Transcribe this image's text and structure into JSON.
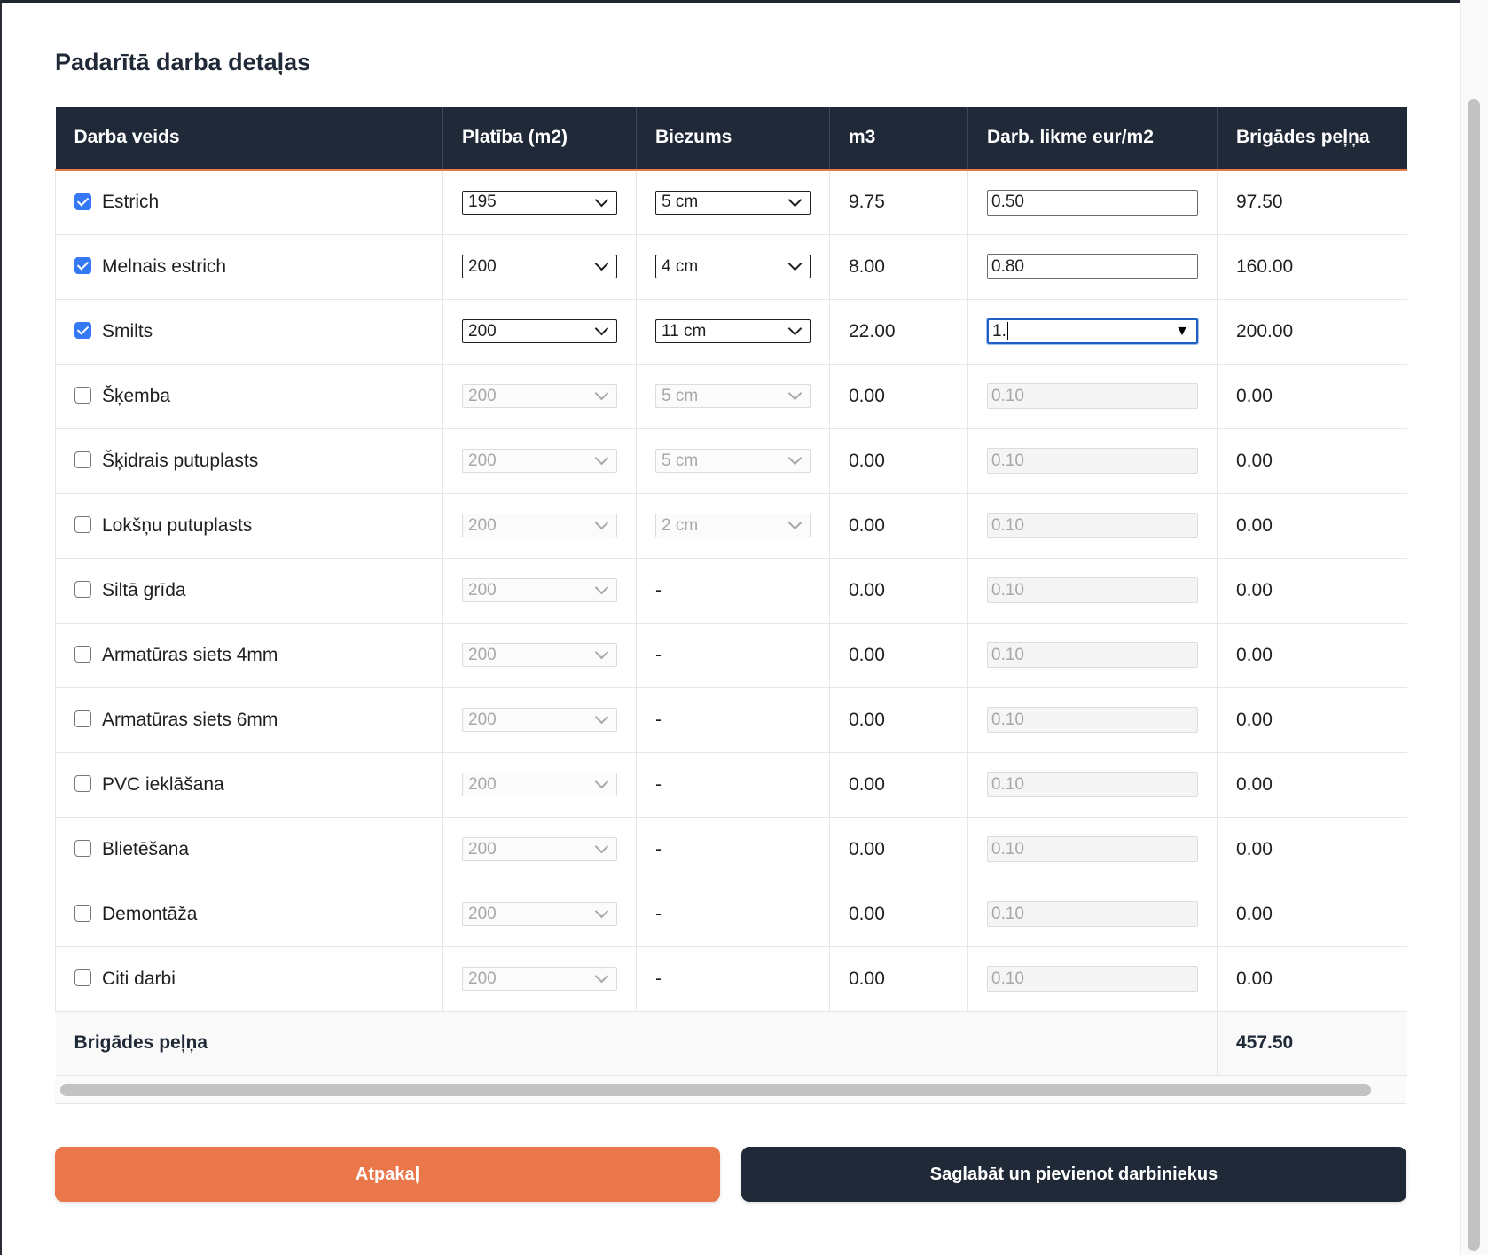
{
  "title": "Padarītā darba detaļas",
  "columns": [
    "Darba veids",
    "Platība (m2)",
    "Biezums",
    "m3",
    "Darb. likme eur/m2",
    "Brigādes peļņa"
  ],
  "rows": [
    {
      "name": "Estrich",
      "checked": true,
      "area": "195",
      "thickness": "5 cm",
      "m3": "9.75",
      "rate": "0.50",
      "profit": "97.50"
    },
    {
      "name": "Melnais estrich",
      "checked": true,
      "area": "200",
      "thickness": "4 cm",
      "m3": "8.00",
      "rate": "0.80",
      "profit": "160.00"
    },
    {
      "name": "Smilts",
      "checked": true,
      "area": "200",
      "thickness": "11 cm",
      "m3": "22.00",
      "rate": "1.",
      "profit": "200.00",
      "focused": true
    },
    {
      "name": "Šķemba",
      "checked": false,
      "area": "200",
      "thickness": "5 cm",
      "m3": "0.00",
      "rate": "0.10",
      "profit": "0.00"
    },
    {
      "name": "Šķidrais putuplasts",
      "checked": false,
      "area": "200",
      "thickness": "5 cm",
      "m3": "0.00",
      "rate": "0.10",
      "profit": "0.00"
    },
    {
      "name": "Lokšņu putuplasts",
      "checked": false,
      "area": "200",
      "thickness": "2 cm",
      "m3": "0.00",
      "rate": "0.10",
      "profit": "0.00"
    },
    {
      "name": "Siltā grīda",
      "checked": false,
      "area": "200",
      "thickness": "-",
      "m3": "0.00",
      "rate": "0.10",
      "profit": "0.00"
    },
    {
      "name": "Armatūras siets 4mm",
      "checked": false,
      "area": "200",
      "thickness": "-",
      "m3": "0.00",
      "rate": "0.10",
      "profit": "0.00"
    },
    {
      "name": "Armatūras siets 6mm",
      "checked": false,
      "area": "200",
      "thickness": "-",
      "m3": "0.00",
      "rate": "0.10",
      "profit": "0.00"
    },
    {
      "name": "PVC ieklāšana",
      "checked": false,
      "area": "200",
      "thickness": "-",
      "m3": "0.00",
      "rate": "0.10",
      "profit": "0.00"
    },
    {
      "name": "Blietēšana",
      "checked": false,
      "area": "200",
      "thickness": "-",
      "m3": "0.00",
      "rate": "0.10",
      "profit": "0.00"
    },
    {
      "name": "Demontāža",
      "checked": false,
      "area": "200",
      "thickness": "-",
      "m3": "0.00",
      "rate": "0.10",
      "profit": "0.00"
    },
    {
      "name": "Citi darbi",
      "checked": false,
      "area": "200",
      "thickness": "-",
      "m3": "0.00",
      "rate": "0.10",
      "profit": "0.00"
    }
  ],
  "footer": {
    "label": "Brigādes peļņa",
    "total": "457.50"
  },
  "buttons": {
    "back": "Atpakaļ",
    "save": "Saglabāt un pievienot darbiniekus"
  },
  "colors": {
    "header_bg": "#1f2937",
    "accent": "#e9774a",
    "checkbox": "#3478f6",
    "focus": "#1f5fc4"
  }
}
